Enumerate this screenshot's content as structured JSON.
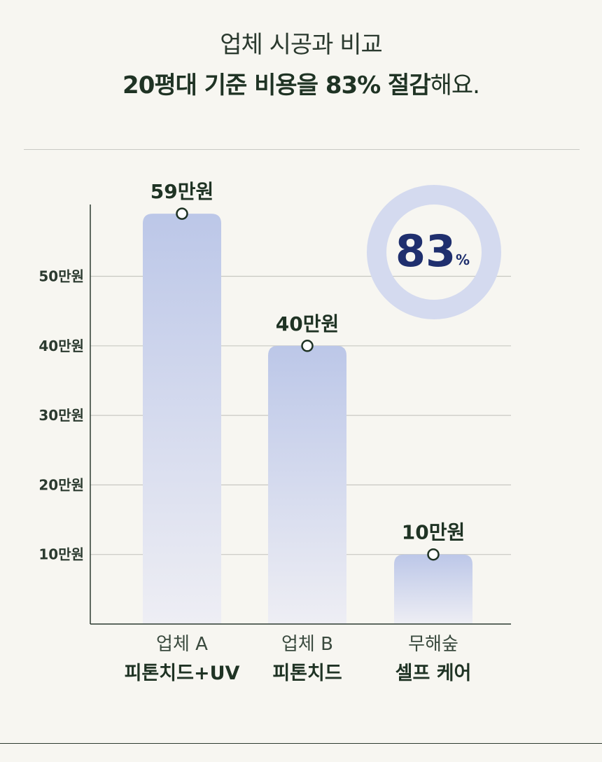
{
  "header": {
    "subtitle": "업체 시공과 비교",
    "headline_strong": "20평대 기준 비용을 83% 절감",
    "headline_rest": "해요."
  },
  "chart_data": {
    "type": "bar",
    "categories": [
      "업체 A 피톤치드+UV",
      "업체 B 피톤치드",
      "무해숲 셀프 케어"
    ],
    "category_lines": [
      {
        "sub": "업체 A",
        "main": "피톤치드+UV"
      },
      {
        "sub": "업체 B",
        "main": "피톤치드"
      },
      {
        "sub": "무해숲",
        "main": "셀프 케어"
      }
    ],
    "values": [
      59,
      40,
      10
    ],
    "value_labels": [
      "59만원",
      "40만원",
      "10만원"
    ],
    "unit": "만원",
    "yticks": [
      10,
      20,
      30,
      40,
      50
    ],
    "ytick_labels": [
      "10만원",
      "20만원",
      "30만원",
      "40만원",
      "50만원"
    ],
    "ylim": [
      0,
      61
    ],
    "grid": true,
    "colors": {
      "bar_top": "#bcc7e8",
      "bar_bottom": "#eeeef4",
      "ring": "#d4daef",
      "ring_text": "#1f2f6e",
      "text": "#1f3324"
    },
    "badge": {
      "value": "83",
      "unit": "%"
    }
  }
}
